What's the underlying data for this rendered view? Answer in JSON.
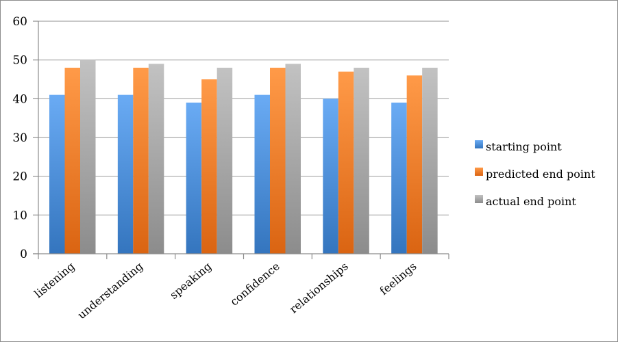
{
  "chart_data": {
    "type": "bar",
    "categories": [
      "listening",
      "understanding",
      "speaking",
      "confidence",
      "relationships",
      "feelings"
    ],
    "series": [
      {
        "name": "starting point",
        "values": [
          41,
          41,
          39,
          41,
          40,
          39
        ],
        "color": "#4a8bd4"
      },
      {
        "name": "predicted end point",
        "values": [
          48,
          48,
          45,
          48,
          47,
          46
        ],
        "color": "#f07a28"
      },
      {
        "name": "actual end point",
        "values": [
          50,
          49,
          48,
          49,
          48,
          48
        ],
        "color": "#a2a2a2"
      }
    ],
    "ylim": [
      0,
      60
    ],
    "yticks": [
      0,
      10,
      20,
      30,
      40,
      50,
      60
    ],
    "grid": true,
    "legend_position": "right"
  }
}
